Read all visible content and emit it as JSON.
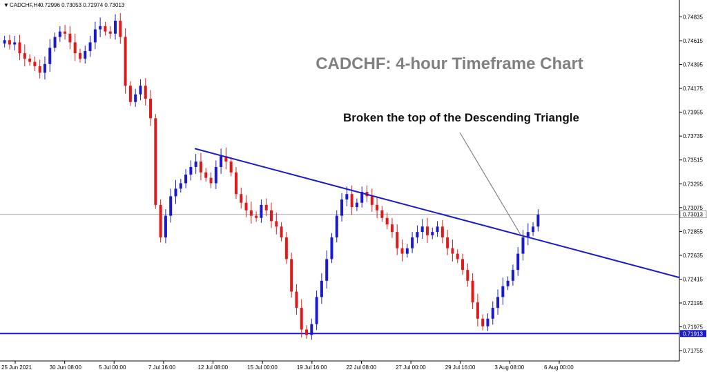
{
  "header": {
    "symbol_label": "CADCHF,H4",
    "ohlc_label": "0.72996 0.73053 0.72974 0.73013"
  },
  "colors": {
    "bull": "#1a1acc",
    "bear": "#e01a1a",
    "trendline": "#1a1acc",
    "support": "#1a1acc",
    "title": "#808080"
  },
  "chart_data": {
    "type": "candlestick",
    "title": "CADCHF: 4-hour Timeframe Chart",
    "annotation": "Broken the top of the Descending Triangle",
    "ylim": [
      0.7166,
      0.7494
    ],
    "y_ticks": [
      "0.74835",
      "0.74615",
      "0.74395",
      "0.74175",
      "0.73955",
      "0.73735",
      "0.73515",
      "0.73295",
      "0.73075",
      "0.72855",
      "0.72635",
      "0.72415",
      "0.72195",
      "0.71975",
      "0.71755"
    ],
    "x_ticks": [
      "25 Jun 2021",
      "30 Jun 08:00",
      "5 Jul 00:00",
      "7 Jul 16:00",
      "12 Jul 08:00",
      "15 Jul 00:00",
      "19 Jul 16:00",
      "22 Jul 08:00",
      "27 Jul 00:00",
      "29 Jul 16:00",
      "3 Aug 08:00",
      "6 Aug 00:00"
    ],
    "current_price": "0.73013",
    "current_price_value": 0.73013,
    "support_price": "0.71913",
    "support_price_value": 0.71913,
    "trendline": {
      "start": {
        "bar": 1,
        "price": 0.7362
      },
      "end": {
        "bar": 12,
        "price": 0.7243
      }
    },
    "closes": [
      0.7462,
      0.7458,
      0.746,
      0.745,
      0.7445,
      0.7442,
      0.7438,
      0.7432,
      0.744,
      0.7455,
      0.7465,
      0.747,
      0.7468,
      0.746,
      0.745,
      0.7445,
      0.7452,
      0.746,
      0.7472,
      0.7475,
      0.747,
      0.7468,
      0.748,
      0.7465,
      0.742,
      0.7405,
      0.7412,
      0.742,
      0.7408,
      0.739,
      0.731,
      0.728,
      0.73,
      0.7318,
      0.7325,
      0.733,
      0.7338,
      0.7345,
      0.735,
      0.734,
      0.7335,
      0.733,
      0.7345,
      0.7355,
      0.735,
      0.734,
      0.732,
      0.7312,
      0.7305,
      0.73,
      0.7298,
      0.731,
      0.7305,
      0.7295,
      0.729,
      0.728,
      0.726,
      0.723,
      0.7215,
      0.7195,
      0.719,
      0.72,
      0.7225,
      0.724,
      0.726,
      0.728,
      0.73,
      0.7315,
      0.732,
      0.7308,
      0.7312,
      0.7322,
      0.7318,
      0.731,
      0.7305,
      0.7298,
      0.7292,
      0.7285,
      0.727,
      0.7265,
      0.727,
      0.728,
      0.7285,
      0.729,
      0.7282,
      0.7285,
      0.729,
      0.728,
      0.727,
      0.7265,
      0.726,
      0.725,
      0.724,
      0.722,
      0.7205,
      0.7198,
      0.7205,
      0.7215,
      0.7225,
      0.7235,
      0.724,
      0.725,
      0.7265,
      0.728,
      0.7285,
      0.729,
      0.7301
    ]
  }
}
